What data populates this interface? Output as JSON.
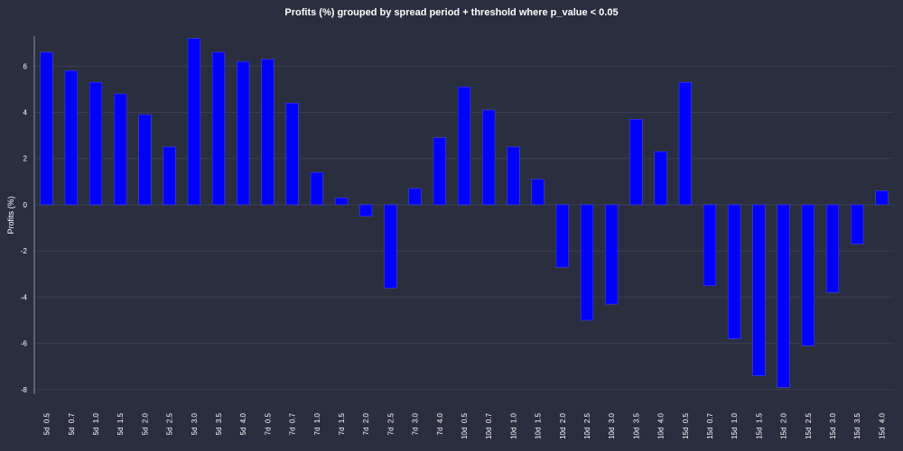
{
  "chart_data": {
    "type": "bar",
    "title": "Profits (%) grouped by spread period + threshold where p_value < 0.05",
    "xlabel": "",
    "ylabel": "Profits (%)",
    "ylim": [
      -8.2,
      7.3
    ],
    "yticks": [
      -8,
      -6,
      -4,
      -2,
      0,
      2,
      4,
      6
    ],
    "grid": true,
    "legend": "none",
    "bar_color": "#0000ff",
    "background_color": "#2b2e3f",
    "categories": [
      "5d  0.5",
      "5d  0.7",
      "5d  1.0",
      "5d  1.5",
      "5d  2.0",
      "5d  2.5",
      "5d  3.0",
      "5d  3.5",
      "5d  4.0",
      "7d  0.5",
      "7d  0.7",
      "7d  1.0",
      "7d  1.5",
      "7d  2.0",
      "7d  2.5",
      "7d  3.0",
      "7d  4.0",
      "10d  0.5",
      "10d  0.7",
      "10d  1.0",
      "10d  1.5",
      "10d  2.0",
      "10d  2.5",
      "10d  3.0",
      "10d  3.5",
      "10d  4.0",
      "15d  0.5",
      "15d  0.7",
      "15d  1.0",
      "15d  1.5",
      "15d  2.0",
      "15d  2.5",
      "15d  3.0",
      "15d  3.5",
      "15d  4.0"
    ],
    "values": [
      6.6,
      5.8,
      5.3,
      4.8,
      3.9,
      2.5,
      7.2,
      6.6,
      6.2,
      6.3,
      4.4,
      1.4,
      0.3,
      -0.5,
      -3.6,
      0.7,
      2.9,
      5.1,
      4.1,
      2.5,
      1.1,
      -2.7,
      -5.0,
      -4.3,
      3.7,
      2.3,
      5.3,
      -3.5,
      -5.8,
      -7.4,
      -7.9,
      -6.1,
      -3.8,
      -1.7,
      0.6
    ]
  }
}
